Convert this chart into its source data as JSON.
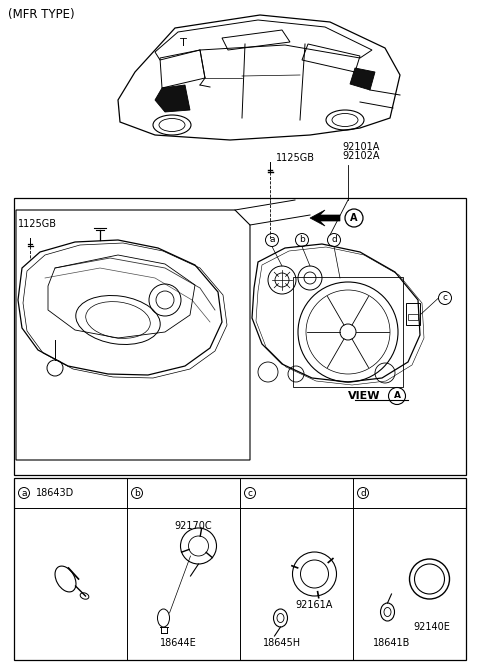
{
  "title": "(MFR TYPE)",
  "background_color": "#ffffff",
  "line_color": "#000000",
  "figsize": [
    4.8,
    6.63
  ],
  "dpi": 100,
  "part_labels_top": [
    "1125GB",
    "92101A",
    "92102A"
  ],
  "part_labels_left": "1125GB",
  "view_label": "VIEW",
  "view_circle_label": "A",
  "arrow_label": "A",
  "bottom_col_labels": [
    "a",
    "b",
    "c",
    "d"
  ],
  "bottom_part_nums": [
    [
      "18643D"
    ],
    [
      "92170C",
      "18644E"
    ],
    [
      "92161A",
      "18645H"
    ],
    [
      "18641B",
      "92140E"
    ]
  ]
}
